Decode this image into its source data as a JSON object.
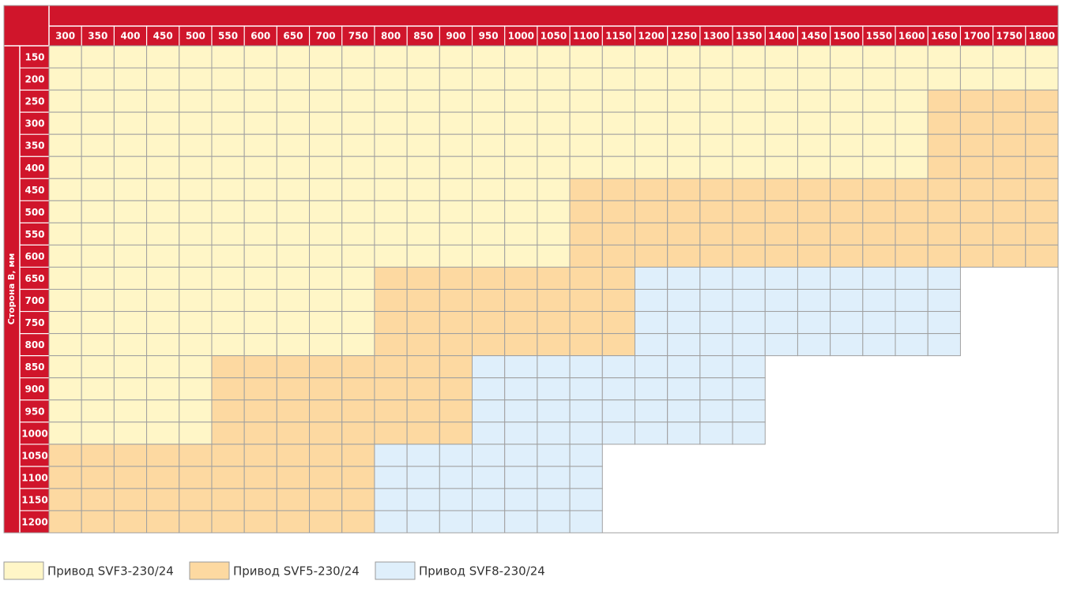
{
  "table": {
    "row_axis_label": "Сторона В, мм",
    "columns": [
      "300",
      "350",
      "400",
      "450",
      "500",
      "550",
      "600",
      "650",
      "700",
      "750",
      "800",
      "850",
      "900",
      "950",
      "1000",
      "1050",
      "1100",
      "1150",
      "1200",
      "1250",
      "1300",
      "1350",
      "1400",
      "1450",
      "1500",
      "1550",
      "1600",
      "1650",
      "1700",
      "1750",
      "1800"
    ],
    "rows": [
      {
        "label": "150",
        "cells": [
          0,
          0,
          0,
          0,
          0,
          0,
          0,
          0,
          0,
          0,
          0,
          0,
          0,
          0,
          0,
          0,
          0,
          0,
          0,
          0,
          0,
          0,
          0,
          0,
          0,
          0,
          0,
          0,
          0,
          0,
          0
        ]
      },
      {
        "label": "200",
        "cells": [
          0,
          0,
          0,
          0,
          0,
          0,
          0,
          0,
          0,
          0,
          0,
          0,
          0,
          0,
          0,
          0,
          0,
          0,
          0,
          0,
          0,
          0,
          0,
          0,
          0,
          0,
          0,
          0,
          0,
          0,
          0
        ]
      },
      {
        "label": "250",
        "cells": [
          0,
          0,
          0,
          0,
          0,
          0,
          0,
          0,
          0,
          0,
          0,
          0,
          0,
          0,
          0,
          0,
          0,
          0,
          0,
          0,
          0,
          0,
          0,
          0,
          0,
          0,
          0,
          1,
          1,
          1,
          1
        ]
      },
      {
        "label": "300",
        "cells": [
          0,
          0,
          0,
          0,
          0,
          0,
          0,
          0,
          0,
          0,
          0,
          0,
          0,
          0,
          0,
          0,
          0,
          0,
          0,
          0,
          0,
          0,
          0,
          0,
          0,
          0,
          0,
          1,
          1,
          1,
          1
        ]
      },
      {
        "label": "350",
        "cells": [
          0,
          0,
          0,
          0,
          0,
          0,
          0,
          0,
          0,
          0,
          0,
          0,
          0,
          0,
          0,
          0,
          0,
          0,
          0,
          0,
          0,
          0,
          0,
          0,
          0,
          0,
          0,
          1,
          1,
          1,
          1
        ]
      },
      {
        "label": "400",
        "cells": [
          0,
          0,
          0,
          0,
          0,
          0,
          0,
          0,
          0,
          0,
          0,
          0,
          0,
          0,
          0,
          0,
          0,
          0,
          0,
          0,
          0,
          0,
          0,
          0,
          0,
          0,
          0,
          1,
          1,
          1,
          1
        ]
      },
      {
        "label": "450",
        "cells": [
          0,
          0,
          0,
          0,
          0,
          0,
          0,
          0,
          0,
          0,
          0,
          0,
          0,
          0,
          0,
          0,
          1,
          1,
          1,
          1,
          1,
          1,
          1,
          1,
          1,
          1,
          1,
          1,
          1,
          1,
          1
        ]
      },
      {
        "label": "500",
        "cells": [
          0,
          0,
          0,
          0,
          0,
          0,
          0,
          0,
          0,
          0,
          0,
          0,
          0,
          0,
          0,
          0,
          1,
          1,
          1,
          1,
          1,
          1,
          1,
          1,
          1,
          1,
          1,
          1,
          1,
          1,
          1
        ]
      },
      {
        "label": "550",
        "cells": [
          0,
          0,
          0,
          0,
          0,
          0,
          0,
          0,
          0,
          0,
          0,
          0,
          0,
          0,
          0,
          0,
          1,
          1,
          1,
          1,
          1,
          1,
          1,
          1,
          1,
          1,
          1,
          1,
          1,
          1,
          1
        ]
      },
      {
        "label": "600",
        "cells": [
          0,
          0,
          0,
          0,
          0,
          0,
          0,
          0,
          0,
          0,
          0,
          0,
          0,
          0,
          0,
          0,
          1,
          1,
          1,
          1,
          1,
          1,
          1,
          1,
          1,
          1,
          1,
          1,
          1,
          1,
          1
        ]
      },
      {
        "label": "650",
        "cells": [
          0,
          0,
          0,
          0,
          0,
          0,
          0,
          0,
          0,
          0,
          1,
          1,
          1,
          1,
          1,
          1,
          1,
          1,
          2,
          2,
          2,
          2,
          2,
          2,
          2,
          2,
          2,
          2,
          null,
          null,
          null
        ]
      },
      {
        "label": "700",
        "cells": [
          0,
          0,
          0,
          0,
          0,
          0,
          0,
          0,
          0,
          0,
          1,
          1,
          1,
          1,
          1,
          1,
          1,
          1,
          2,
          2,
          2,
          2,
          2,
          2,
          2,
          2,
          2,
          2,
          null,
          null,
          null
        ]
      },
      {
        "label": "750",
        "cells": [
          0,
          0,
          0,
          0,
          0,
          0,
          0,
          0,
          0,
          0,
          1,
          1,
          1,
          1,
          1,
          1,
          1,
          1,
          2,
          2,
          2,
          2,
          2,
          2,
          2,
          2,
          2,
          2,
          null,
          null,
          null
        ]
      },
      {
        "label": "800",
        "cells": [
          0,
          0,
          0,
          0,
          0,
          0,
          0,
          0,
          0,
          0,
          1,
          1,
          1,
          1,
          1,
          1,
          1,
          1,
          2,
          2,
          2,
          2,
          2,
          2,
          2,
          2,
          2,
          2,
          null,
          null,
          null
        ]
      },
      {
        "label": "850",
        "cells": [
          0,
          0,
          0,
          0,
          0,
          1,
          1,
          1,
          1,
          1,
          1,
          1,
          1,
          2,
          2,
          2,
          2,
          2,
          2,
          2,
          2,
          2,
          null,
          null,
          null,
          null,
          null,
          null,
          null,
          null,
          null
        ]
      },
      {
        "label": "900",
        "cells": [
          0,
          0,
          0,
          0,
          0,
          1,
          1,
          1,
          1,
          1,
          1,
          1,
          1,
          2,
          2,
          2,
          2,
          2,
          2,
          2,
          2,
          2,
          null,
          null,
          null,
          null,
          null,
          null,
          null,
          null,
          null
        ]
      },
      {
        "label": "950",
        "cells": [
          0,
          0,
          0,
          0,
          0,
          1,
          1,
          1,
          1,
          1,
          1,
          1,
          1,
          2,
          2,
          2,
          2,
          2,
          2,
          2,
          2,
          2,
          null,
          null,
          null,
          null,
          null,
          null,
          null,
          null,
          null
        ]
      },
      {
        "label": "1000",
        "cells": [
          0,
          0,
          0,
          0,
          0,
          1,
          1,
          1,
          1,
          1,
          1,
          1,
          1,
          2,
          2,
          2,
          2,
          2,
          2,
          2,
          2,
          2,
          null,
          null,
          null,
          null,
          null,
          null,
          null,
          null,
          null
        ]
      },
      {
        "label": "1050",
        "cells": [
          1,
          1,
          1,
          1,
          1,
          1,
          1,
          1,
          1,
          1,
          2,
          2,
          2,
          2,
          2,
          2,
          2,
          null,
          null,
          null,
          null,
          null,
          null,
          null,
          null,
          null,
          null,
          null,
          null,
          null,
          null
        ]
      },
      {
        "label": "1100",
        "cells": [
          1,
          1,
          1,
          1,
          1,
          1,
          1,
          1,
          1,
          1,
          2,
          2,
          2,
          2,
          2,
          2,
          2,
          null,
          null,
          null,
          null,
          null,
          null,
          null,
          null,
          null,
          null,
          null,
          null,
          null,
          null
        ]
      },
      {
        "label": "1150",
        "cells": [
          1,
          1,
          1,
          1,
          1,
          1,
          1,
          1,
          1,
          1,
          2,
          2,
          2,
          2,
          2,
          2,
          2,
          null,
          null,
          null,
          null,
          null,
          null,
          null,
          null,
          null,
          null,
          null,
          null,
          null,
          null
        ]
      },
      {
        "label": "1200",
        "cells": [
          1,
          1,
          1,
          1,
          1,
          1,
          1,
          1,
          1,
          1,
          2,
          2,
          2,
          2,
          2,
          2,
          2,
          null,
          null,
          null,
          null,
          null,
          null,
          null,
          null,
          null,
          null,
          null,
          null,
          null,
          null
        ]
      }
    ]
  },
  "legend": [
    {
      "label": "Привод SVF3-230/24",
      "color": "#fff6c7"
    },
    {
      "label": "Привод SVF5-230/24",
      "color": "#fdd9a1"
    },
    {
      "label": "Привод SVF8-230/24",
      "color": "#dfeffb"
    }
  ],
  "header_color": "#d0152b"
}
